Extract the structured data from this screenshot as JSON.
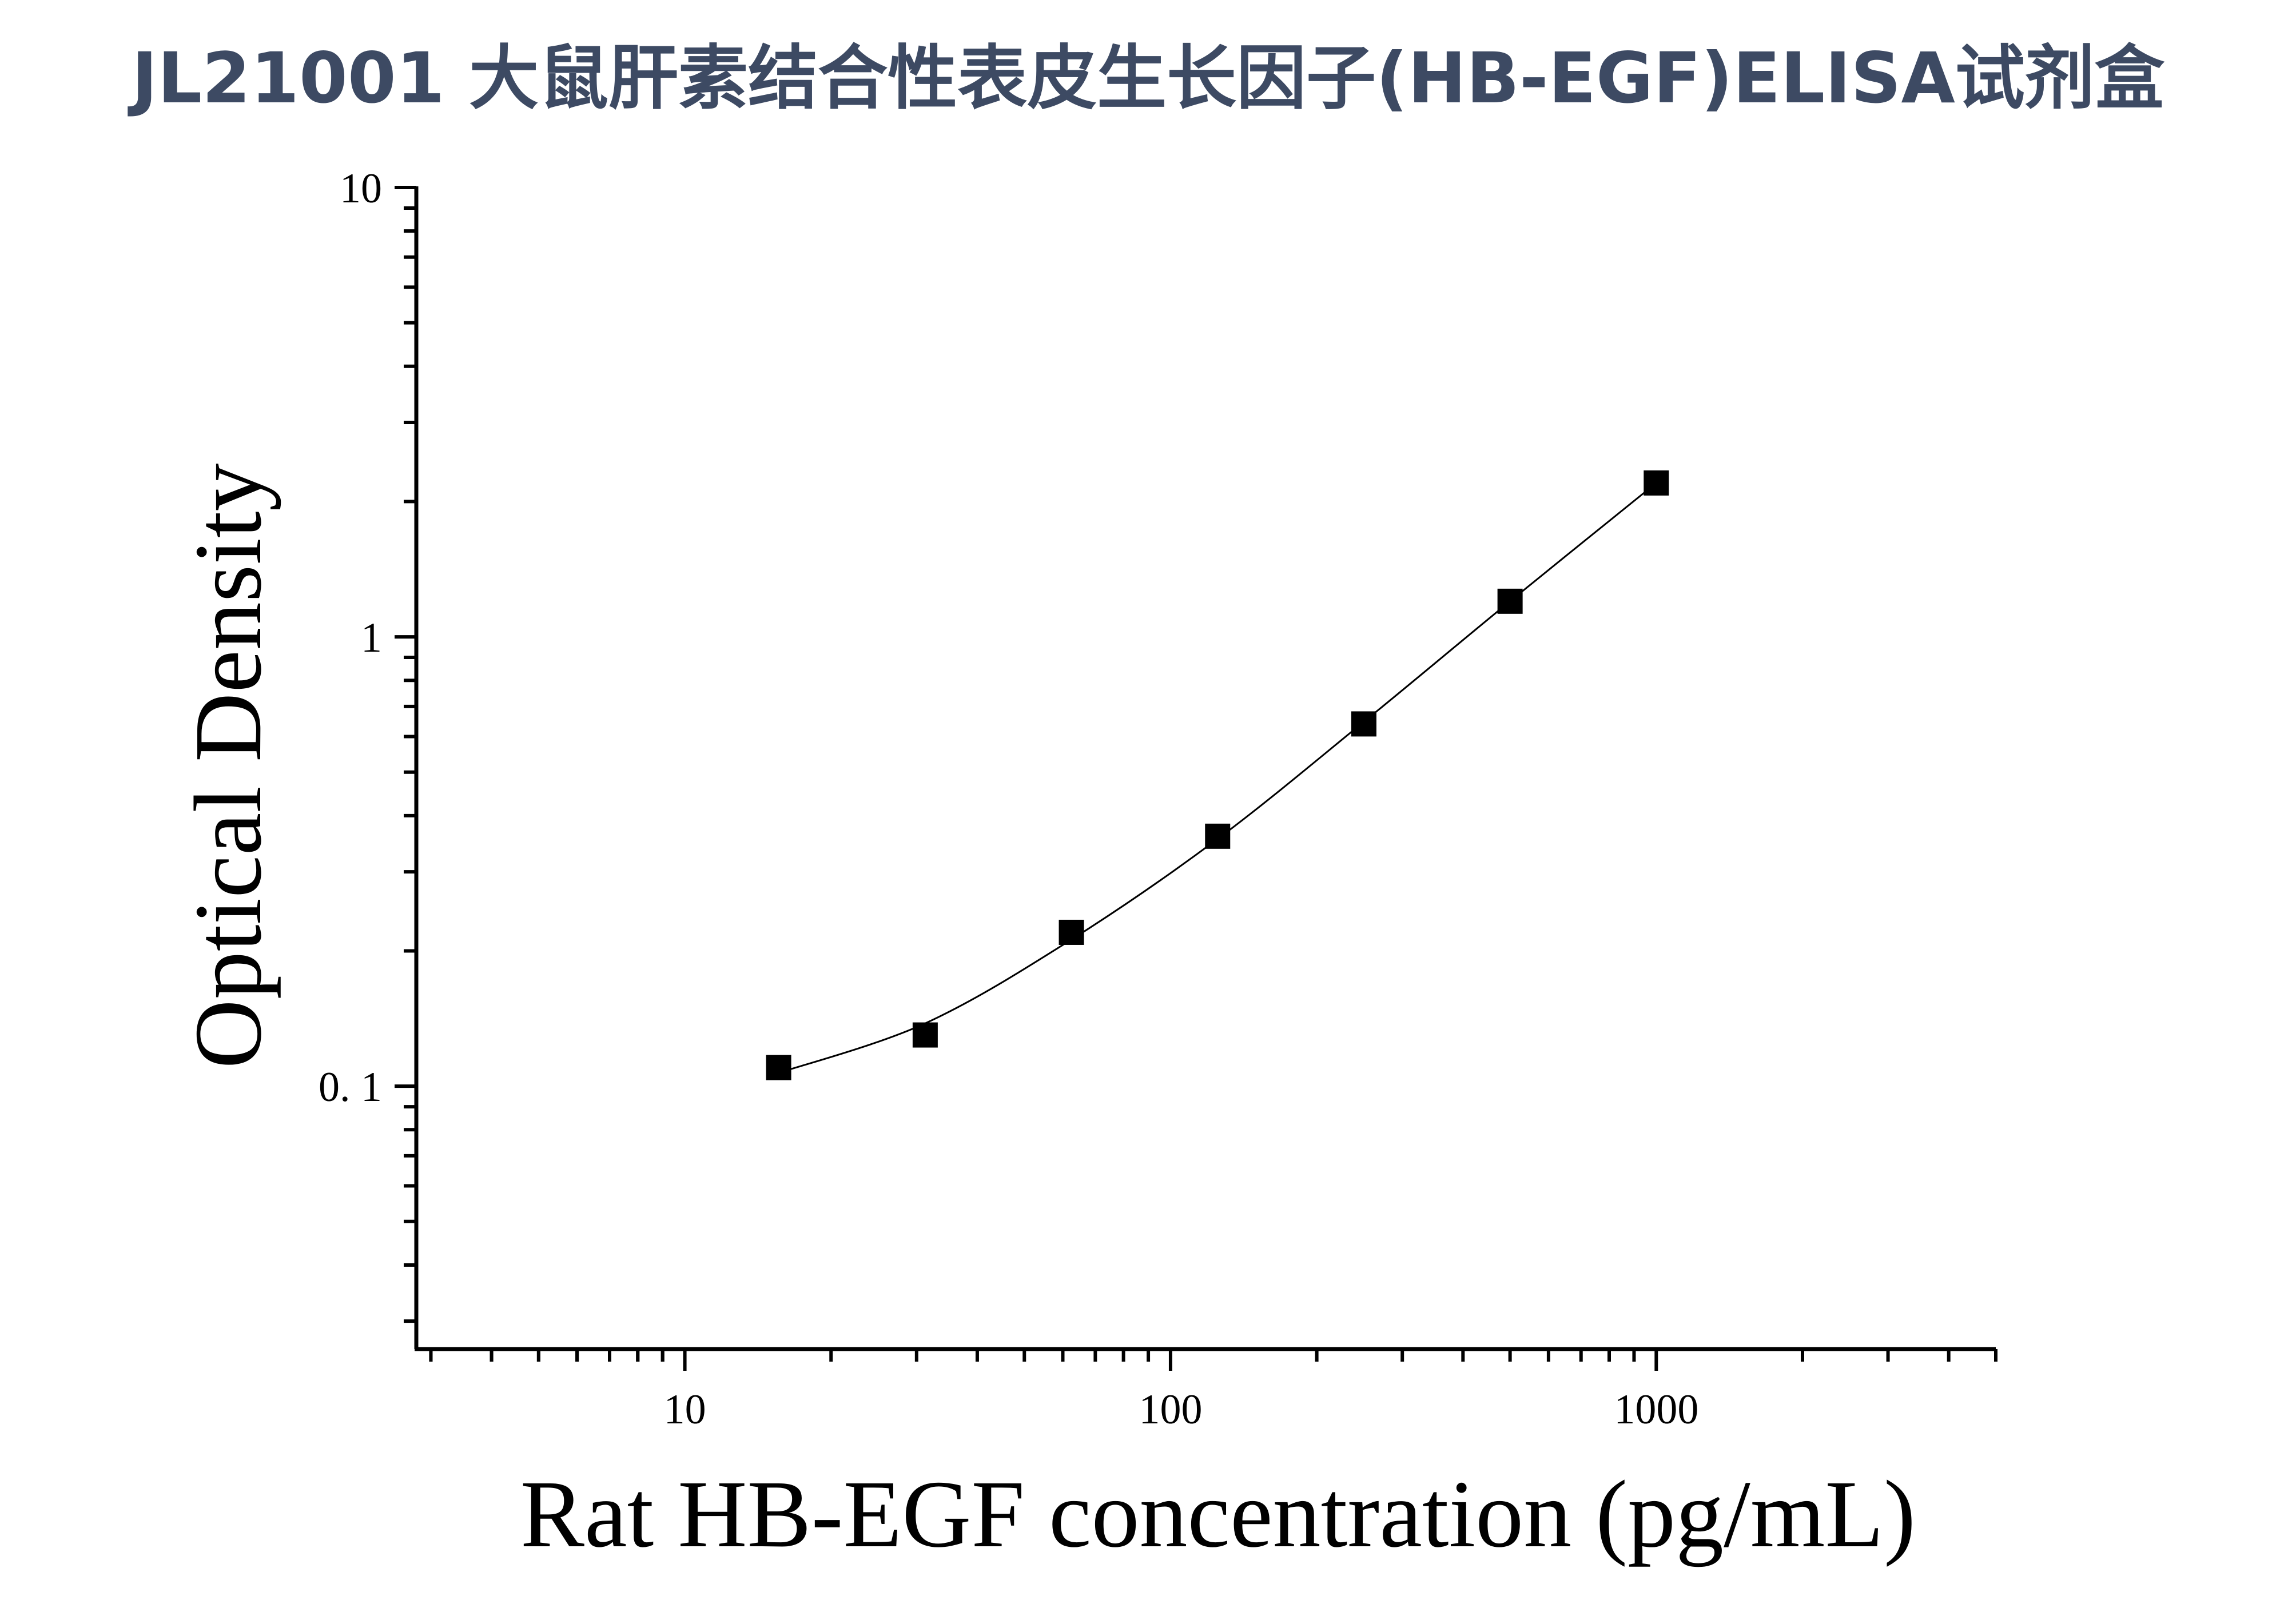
{
  "title": "JL21001 大鼠肝素结合性表皮生长因子(HB-EGF)ELISA试剂盒",
  "chart_data": {
    "type": "scatter",
    "title": "JL21001 大鼠肝素结合性表皮生长因子(HB-EGF)ELISA试剂盒",
    "xlabel": "Rat HB-EGF concentration (pg/mL)",
    "ylabel": "Optical Density",
    "xscale": "log",
    "yscale": "log",
    "xlim": [
      2.8,
      5000
    ],
    "ylim": [
      0.026,
      10
    ],
    "xticks": [
      10,
      100,
      1000
    ],
    "xtick_labels": [
      "10",
      "100",
      "1000"
    ],
    "yticks": [
      0.1,
      1,
      10
    ],
    "ytick_labels": [
      "0. 1",
      "1",
      "10"
    ],
    "grid": false,
    "legend": "none",
    "marker": "square",
    "marker_color": "#000000",
    "line_color": "#000000",
    "series": [
      {
        "x": [
          15.6,
          31.25,
          62.5,
          125,
          250,
          500,
          1000
        ],
        "y": [
          0.11,
          0.13,
          0.22,
          0.36,
          0.64,
          1.2,
          2.2
        ]
      }
    ],
    "fit_curve": {
      "type": "smooth",
      "x": [
        15.6,
        31.25,
        62.5,
        125,
        250,
        500,
        1000
      ],
      "y": [
        0.107,
        0.138,
        0.212,
        0.355,
        0.647,
        1.2,
        2.2
      ]
    }
  }
}
